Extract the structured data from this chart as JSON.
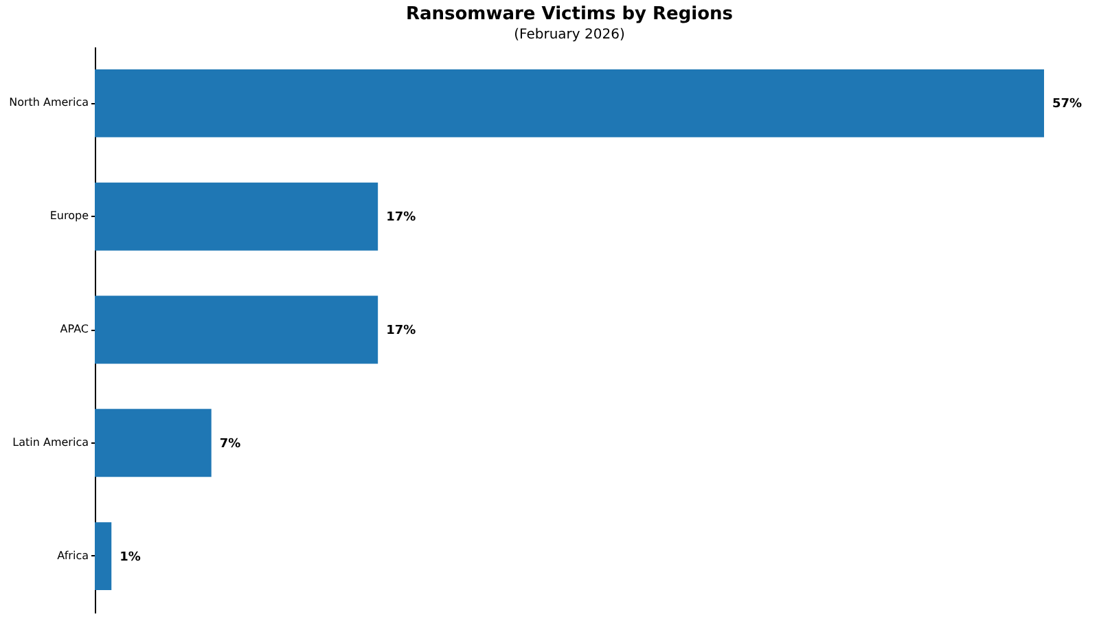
{
  "chart_data": {
    "type": "bar",
    "orientation": "horizontal",
    "title": "Ransomware Victims by Regions",
    "subtitle": "(February 2026)",
    "categories": [
      "North America",
      "Europe",
      "APAC",
      "Latin America",
      "Africa"
    ],
    "values": [
      57,
      17,
      17,
      7,
      1
    ],
    "value_labels": [
      "57%",
      "17%",
      "17%",
      "7%",
      "1%"
    ],
    "color": "#1f77b4"
  }
}
